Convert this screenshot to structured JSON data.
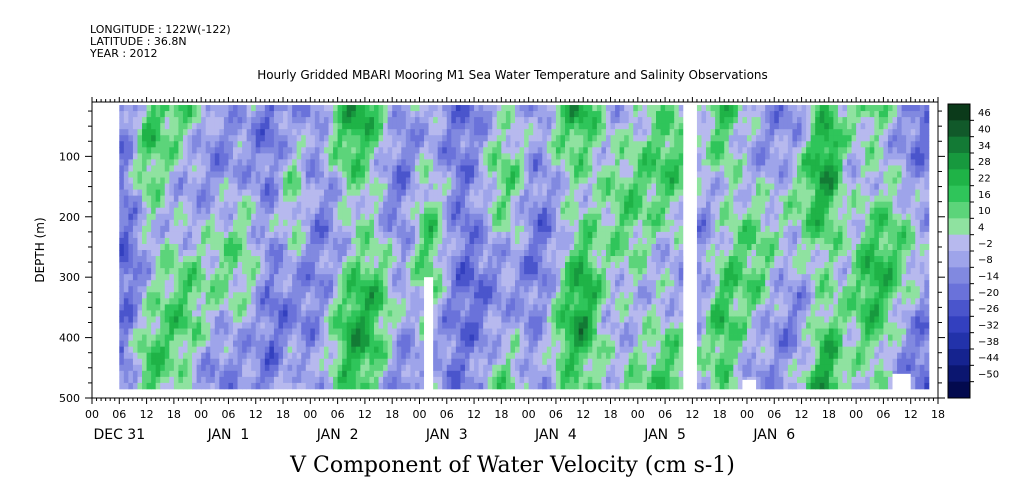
{
  "header": {
    "longitude": "LONGITUDE : 122W(-122)",
    "latitude": "LATITUDE : 36.8N",
    "year": "YEAR : 2012"
  },
  "chart_data": {
    "type": "heatmap",
    "title": "Hourly Gridded MBARI Mooring M1 Sea Water Temperature and Salinity Observations",
    "variable_label": "V Component of Water Velocity (cm s-1)",
    "ylabel": "DEPTH (m)",
    "ylim": [
      500,
      10
    ],
    "y_ticks": [
      100,
      200,
      300,
      400,
      500
    ],
    "x_hour_ticks": [
      "00",
      "06",
      "12",
      "18",
      "00",
      "06",
      "12",
      "18",
      "00",
      "06",
      "12",
      "18",
      "00",
      "06",
      "12",
      "18",
      "00",
      "06",
      "12",
      "18",
      "00",
      "06",
      "12",
      "18",
      "00",
      "06",
      "12",
      "18",
      "00",
      "06",
      "12",
      "18"
    ],
    "x_day_labels": [
      "DEC 31",
      "JAN  1",
      "JAN  2",
      "JAN  3",
      "JAN  4",
      "JAN  5",
      "JAN  6"
    ],
    "x_range_hours": [
      0,
      186
    ],
    "data_range_hours": [
      6,
      184
    ],
    "depth_range_m": [
      15,
      485
    ],
    "colorbar": {
      "levels": [
        46,
        40,
        34,
        28,
        22,
        16,
        10,
        4,
        -2,
        -8,
        -14,
        -20,
        -26,
        -32,
        -38,
        -44,
        -50
      ],
      "colors": [
        "#0b3a1a",
        "#11592a",
        "#137a35",
        "#17993e",
        "#1fb347",
        "#2fc55a",
        "#5cd47a",
        "#8fe2a0",
        "#b7b9ee",
        "#9ea4ea",
        "#8189e0",
        "#6a72da",
        "#4a55cc",
        "#3340bf",
        "#2232aa",
        "#15238f",
        "#0b1670",
        "#030a4e"
      ]
    },
    "gaps_hours": [
      [
        130,
        133
      ]
    ],
    "masked_patches": [
      {
        "hours": [
          73,
          75
        ],
        "depth": [
          300,
          485
        ]
      },
      {
        "hours": [
          143,
          146
        ],
        "depth": [
          470,
          485
        ]
      },
      {
        "hours": [
          176,
          180
        ],
        "depth": [
          460,
          485
        ]
      }
    ],
    "green_columns_hours": [
      12,
      20,
      30,
      44,
      56,
      62,
      74,
      90,
      106,
      108,
      116,
      128,
      138,
      146,
      158,
      162,
      170,
      178
    ],
    "blue_columns_hours": [
      8,
      26,
      40,
      50,
      68,
      84,
      98,
      112,
      134,
      152,
      166,
      182
    ]
  }
}
